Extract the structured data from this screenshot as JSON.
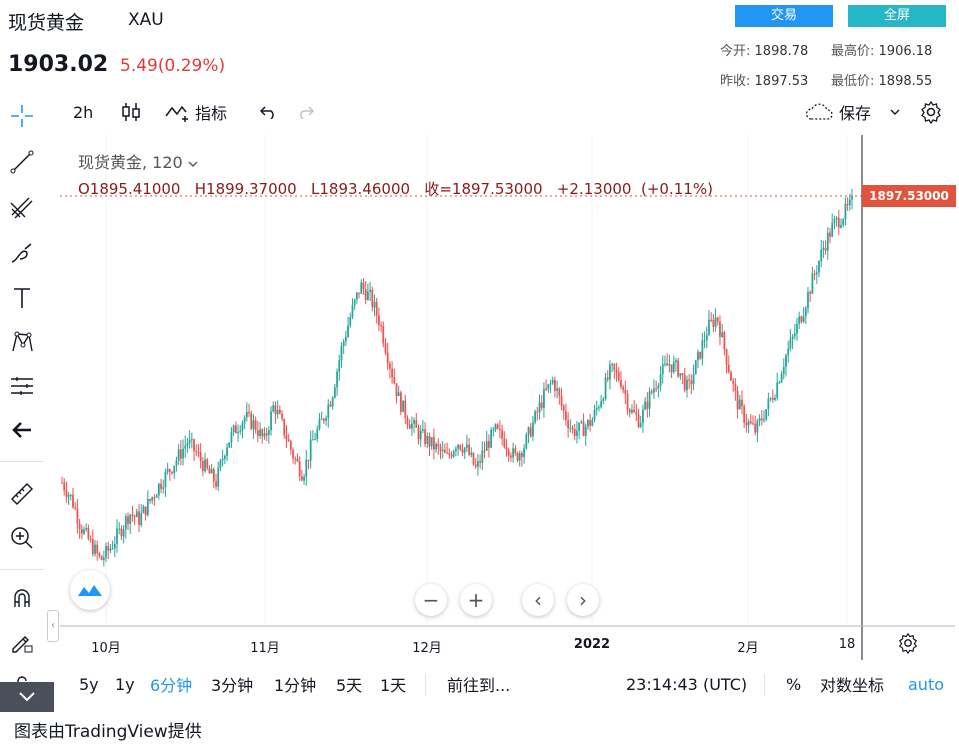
{
  "header": {
    "title": "现货黄金",
    "code": "XAU",
    "price": "1903.02",
    "change": "5.49(0.29%)",
    "trade_btn": "交易",
    "fullscreen_btn": "全屏",
    "stats": {
      "open_label": "今开:",
      "open": "1898.78",
      "high_label": "最高价:",
      "high": "1906.18",
      "prev_label": "昨收:",
      "prev": "1897.53",
      "low_label": "最低价:",
      "low": "1898.55"
    }
  },
  "topbar": {
    "interval": "2h",
    "indicators": "指标",
    "save": "保存"
  },
  "legend": {
    "symbol": "现货黄金, 120",
    "ohlc": "O1895.41000   H1899.37000   L1893.46000   收=1897.53000   +2.13000  (+0.11%)"
  },
  "price_tag": "1897.53000",
  "colors": {
    "up": "#26a69a",
    "down": "#ef5350",
    "accent": "#2196f3",
    "tag": "#e0533d"
  },
  "chart_data": {
    "type": "line",
    "x_tick_labels": [
      "10月",
      "11月",
      "12月",
      "2022",
      "2月",
      "18"
    ],
    "last_close": 1897.53,
    "series": [
      {
        "values": [
          1770,
          1762,
          1748,
          1740,
          1732,
          1738,
          1746,
          1755,
          1752,
          1760,
          1768,
          1775,
          1782,
          1790,
          1784,
          1776,
          1770,
          1788,
          1796,
          1802,
          1798,
          1790,
          1808,
          1796,
          1783,
          1774,
          1790,
          1800,
          1812,
          1835,
          1852,
          1866,
          1860,
          1848,
          1828,
          1810,
          1800,
          1794,
          1790,
          1786,
          1782,
          1790,
          1786,
          1776,
          1788,
          1795,
          1790,
          1782,
          1788,
          1800,
          1812,
          1820,
          1805,
          1795,
          1796,
          1800,
          1812,
          1825,
          1820,
          1805,
          1800,
          1812,
          1822,
          1828,
          1825,
          1815,
          1830,
          1845,
          1851,
          1830,
          1810,
          1800,
          1795,
          1805,
          1815,
          1830,
          1842,
          1855,
          1870,
          1884,
          1895,
          1900,
          1906
        ]
      }
    ],
    "icons": [
      "crosshair-icon",
      "trendline-icon",
      "fib-icon",
      "brush-icon",
      "text-icon",
      "pattern-icon",
      "measure-icon",
      "back-arrow-icon",
      "ruler-icon",
      "zoom-in-icon",
      "magnet-icon",
      "lock-draw-icon",
      "lock-icon",
      "eye-icon"
    ]
  },
  "bottombar": {
    "ranges": [
      "5y",
      "1y",
      "6分钟",
      "3分钟",
      "1分钟",
      "5天",
      "1天"
    ],
    "goto": "前往到...",
    "time": "23:14:43 (UTC)",
    "percent": "%",
    "log": "对数坐标",
    "auto": "auto"
  },
  "footer": "图表由TradingView提供"
}
